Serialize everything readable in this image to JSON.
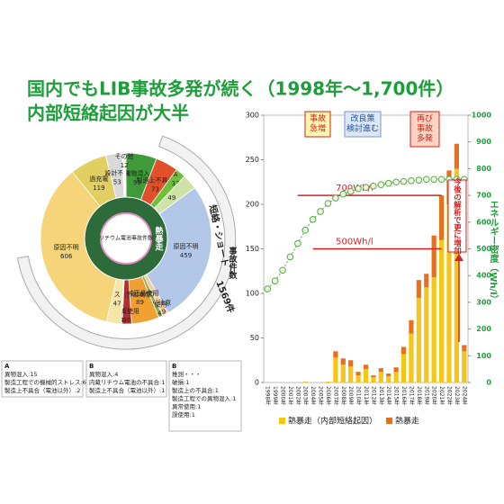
{
  "header": {
    "title": "国内でもLIB事故多発が続く（1998年～1,700件）",
    "subtitle": "内部短絡起因が大半"
  },
  "chart_data": [
    {
      "type": "pie",
      "center_label": "リチウム電池事故件数",
      "ring_label": "熱暴走",
      "arc_label": "短絡・ショート",
      "arc_total": "1569件",
      "categories": [
        "異物混入",
        "製造上不具合",
        "A",
        null,
        "原因不明",
        "不注意",
        "誤使用",
        "非純正品使用",
        "廃棄使用",
        "B",
        "機械的ストレス（外部衝撃）",
        "原因不明",
        "過充電",
        "設計不良",
        "その他"
      ],
      "values": [
        99,
        73,
        33,
        49,
        459,
        19,
        14,
        89,
        30,
        4,
        47,
        606,
        119,
        53,
        12
      ],
      "colors": [
        "#3f9a3a",
        "#e0502a",
        "#6fbf3f",
        "#cfe3a8",
        "#b3c8e8",
        "#f4c9a0",
        "#8fae4a",
        "#f0a030",
        "#b03030",
        "#777777",
        "#f5e6a8",
        "#f5d47a",
        "#e2cf62",
        "#d9d9d9",
        "#ffffff"
      ]
    },
    {
      "type": "bar",
      "stacked": true,
      "ylabel": "事故件数",
      "y2label": "エネルギー密度（Wh/l）",
      "categories": [
        "1998年",
        "1999年",
        "2000年",
        "2001年",
        "2002年",
        "2003年",
        "2004年",
        "2005年",
        "2006年",
        "2007年",
        "2008年",
        "2009年",
        "2010年",
        "2011年",
        "2012年",
        "2013年",
        "2014年",
        "2015年",
        "2016年",
        "2017年",
        "2018年",
        "2019年",
        "2020年",
        "2021年",
        "2022年",
        "2023年",
        "2024年"
      ],
      "series": [
        {
          "name": "熱暴走（内部短絡起因）",
          "color": "#f5c518",
          "values": [
            0,
            0,
            0,
            0,
            0,
            1,
            0,
            0,
            1,
            28,
            20,
            18,
            8,
            15,
            6,
            12,
            7,
            12,
            32,
            55,
            95,
            107,
            118,
            160,
            200,
            240,
            35
          ]
        },
        {
          "name": "熱暴走",
          "color": "#e8701a",
          "values": [
            0,
            0,
            0,
            0,
            0,
            0,
            0,
            0,
            0,
            7,
            7,
            7,
            4,
            5,
            2,
            4,
            3,
            5,
            8,
            15,
            20,
            15,
            47,
            50,
            38,
            28,
            7
          ]
        },
        {
          "type": "line",
          "axis": "y2",
          "color": "#5aa84a",
          "values": [
            350,
            380,
            420,
            470,
            520,
            570,
            610,
            640,
            670,
            690,
            705,
            715,
            725,
            730,
            735,
            740,
            745,
            750,
            752,
            755,
            757,
            760,
            760,
            760,
            760,
            760,
            760
          ]
        }
      ],
      "ylim": [
        0,
        300
      ],
      "yticks": [
        0,
        50,
        100,
        150,
        200,
        250,
        300
      ],
      "y2lim": [
        0,
        1000
      ],
      "y2ticks": [
        0,
        100,
        200,
        300,
        400,
        500,
        600,
        700,
        800,
        900,
        1000
      ],
      "legend": "bottom",
      "annotations": [
        {
          "lines": [
            "事故",
            "急増"
          ]
        },
        {
          "lines": [
            "改良策",
            "検討進む"
          ]
        },
        {
          "lines": [
            "再び",
            "事故",
            "多発"
          ]
        }
      ],
      "ref_lines": [
        {
          "label": "700Wh/l",
          "value": 700
        },
        {
          "label": "500Wh/l",
          "value": 500
        }
      ],
      "arrow_note": "今後の解析で更に増加"
    }
  ],
  "notes": [
    {
      "title": "A",
      "lines": [
        "異物混入:15",
        "製造工程での機械的ストレス:6",
        "製造上不具合（電池以外）:2"
      ]
    },
    {
      "title": "B",
      "lines": [
        "異物混入:4",
        "内蔵リチウム電池の不具合:1",
        "製造上不具合（電池以外）:1"
      ]
    },
    {
      "title": "B",
      "lines": [
        "推測・・・",
        "破損:1",
        "製造上の不具合:1",
        "製造工程での異物混入:1",
        "異常使用:1",
        "誤使用:1"
      ]
    }
  ]
}
